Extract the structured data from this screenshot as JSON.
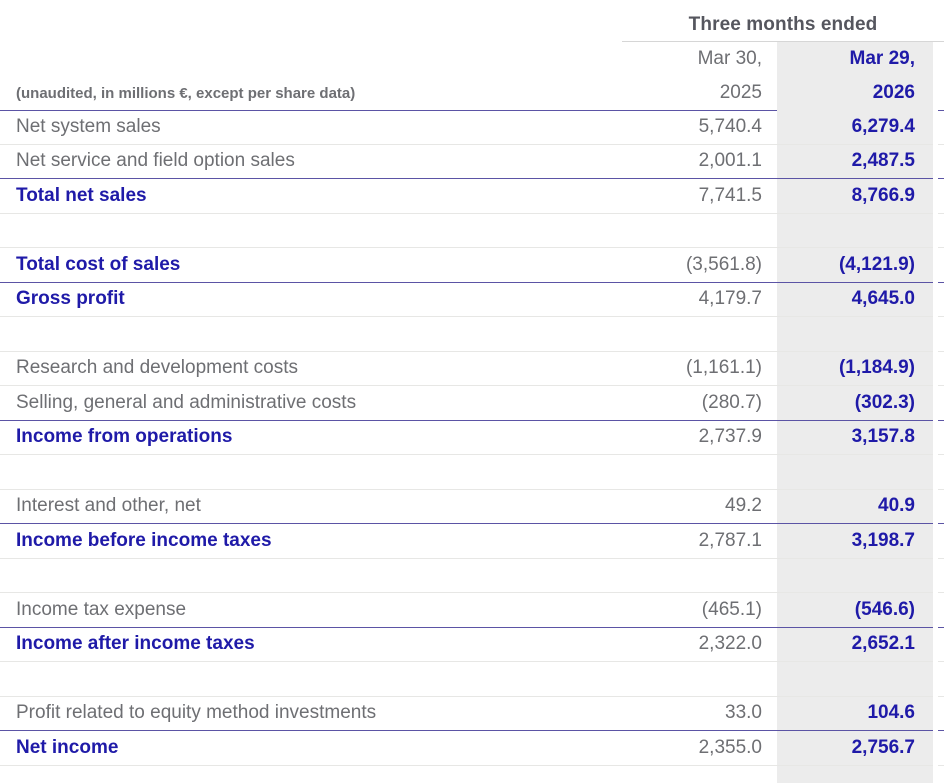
{
  "header": {
    "period_label": "Three months ended",
    "note": "(unaudited, in millions €, except per share data)",
    "col_2025": {
      "line1": "Mar 30,",
      "line2": "2025"
    },
    "col_2026": {
      "line1": "Mar 29,",
      "line2": "2026"
    }
  },
  "colors": {
    "accent_navy_text": "#1f1aa8",
    "navy_rule": "#5b54a5",
    "light_rule": "#e7e7e5",
    "header_rule": "#d6d6d6",
    "muted_text": "#6e6f73",
    "header_text": "#55565e",
    "highlight_column_bg": "#ececec"
  },
  "table": {
    "rows": [
      {
        "type": "data",
        "label": "Net system sales",
        "v2025": "5,740.4",
        "v2026": "6,279.4",
        "bold": false,
        "border": "light"
      },
      {
        "type": "data",
        "label": "Net service and field option sales",
        "v2025": "2,001.1",
        "v2026": "2,487.5",
        "bold": false,
        "border": "navy"
      },
      {
        "type": "data",
        "label": "Total net sales",
        "v2025": "7,741.5",
        "v2026": "8,766.9",
        "bold": true,
        "border": "light"
      },
      {
        "type": "spacer",
        "border": "light"
      },
      {
        "type": "data",
        "label": "Total cost of sales",
        "v2025": "(3,561.8)",
        "v2026": "(4,121.9)",
        "bold": true,
        "border": "navy"
      },
      {
        "type": "data",
        "label": "Gross profit",
        "v2025": "4,179.7",
        "v2026": "4,645.0",
        "bold": true,
        "border": "light"
      },
      {
        "type": "spacer",
        "border": "light"
      },
      {
        "type": "data",
        "label": "Research and development costs",
        "v2025": "(1,161.1)",
        "v2026": "(1,184.9)",
        "bold": false,
        "border": "light"
      },
      {
        "type": "data",
        "label": "Selling, general and administrative costs",
        "v2025": "(280.7)",
        "v2026": "(302.3)",
        "bold": false,
        "border": "navy"
      },
      {
        "type": "data",
        "label": "Income from operations",
        "v2025": "2,737.9",
        "v2026": "3,157.8",
        "bold": true,
        "border": "light"
      },
      {
        "type": "spacer",
        "border": "light"
      },
      {
        "type": "data",
        "label": "Interest and other, net",
        "v2025": "49.2",
        "v2026": "40.9",
        "bold": false,
        "border": "navy"
      },
      {
        "type": "data",
        "label": "Income before income taxes",
        "v2025": "2,787.1",
        "v2026": "3,198.7",
        "bold": true,
        "border": "light"
      },
      {
        "type": "spacer",
        "border": "light"
      },
      {
        "type": "data",
        "label": "Income tax expense",
        "v2025": "(465.1)",
        "v2026": "(546.6)",
        "bold": false,
        "border": "navy"
      },
      {
        "type": "data",
        "label": "Income after income taxes",
        "v2025": "2,322.0",
        "v2026": "2,652.1",
        "bold": true,
        "border": "light"
      },
      {
        "type": "spacer",
        "border": "light"
      },
      {
        "type": "data",
        "label": "Profit related to equity method investments",
        "v2025": "33.0",
        "v2026": "104.6",
        "bold": false,
        "border": "navy"
      },
      {
        "type": "data",
        "label": "Net income",
        "v2025": "2,355.0",
        "v2026": "2,756.7",
        "bold": true,
        "border": "light"
      },
      {
        "type": "filler"
      }
    ]
  }
}
